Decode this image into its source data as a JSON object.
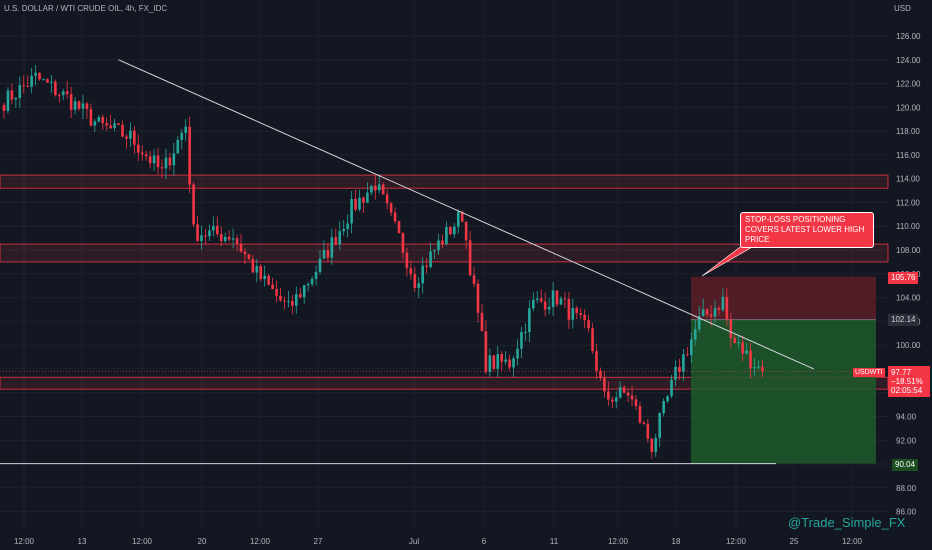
{
  "header": {
    "title": "U.S. DOLLAR / WTI CRUDE OIL, 4h, FX_IDC",
    "currency": "USD"
  },
  "annotation": {
    "text": "STOP-LOSS POSITIONING COVERS LATEST LOWER HIGH PRICE"
  },
  "watermark": "@Trade_Simple_FX",
  "price_tags": {
    "stop": "105.76",
    "entry": "102.14",
    "symbol": "USDWTI",
    "last": "97.77",
    "change": "−18.51%",
    "countdown": "02:05:54",
    "target": "90.04"
  },
  "colors": {
    "background": "#131722",
    "up": "#26a69a",
    "down": "#f23645",
    "zone_border": "#f23645",
    "stop_zone": "#5c1f28",
    "profit_zone": "#1e5a2a",
    "trendline": "#d1d4dc"
  },
  "chart_data": {
    "type": "candlestick",
    "title": "U.S. DOLLAR / WTI CRUDE OIL, 4h, FX_IDC",
    "ylim": [
      86,
      127
    ],
    "y_ticks": [
      86,
      88,
      90,
      92,
      94,
      96,
      98,
      100,
      102,
      104,
      106,
      108,
      110,
      112,
      114,
      116,
      118,
      120,
      122,
      124,
      126
    ],
    "x_ticks": [
      "12:00",
      "13",
      "12:00",
      "20",
      "12:00",
      "27",
      "Jul",
      "6",
      "11",
      "12:00",
      "18",
      "12:00",
      "25",
      "12:00"
    ],
    "anchors": [
      {
        "bar": 0,
        "price": 120.5
      },
      {
        "bar": 8,
        "price": 122.5
      },
      {
        "bar": 16,
        "price": 120.8
      },
      {
        "bar": 24,
        "price": 118.5
      },
      {
        "bar": 32,
        "price": 117.5
      },
      {
        "bar": 40,
        "price": 114.5
      },
      {
        "bar": 46,
        "price": 118.5
      },
      {
        "bar": 48,
        "price": 109.5
      },
      {
        "bar": 58,
        "price": 109.2
      },
      {
        "bar": 64,
        "price": 106.0
      },
      {
        "bar": 72,
        "price": 103.0
      },
      {
        "bar": 80,
        "price": 106.8
      },
      {
        "bar": 88,
        "price": 111.5
      },
      {
        "bar": 94,
        "price": 113.6
      },
      {
        "bar": 100,
        "price": 109.0
      },
      {
        "bar": 104,
        "price": 105.5
      },
      {
        "bar": 110,
        "price": 108.5
      },
      {
        "bar": 116,
        "price": 111.0
      },
      {
        "bar": 119,
        "price": 104.5
      },
      {
        "bar": 122,
        "price": 98.5
      },
      {
        "bar": 128,
        "price": 98.5
      },
      {
        "bar": 134,
        "price": 103.5
      },
      {
        "bar": 140,
        "price": 104.0
      },
      {
        "bar": 148,
        "price": 101.0
      },
      {
        "bar": 152,
        "price": 95.5
      },
      {
        "bar": 158,
        "price": 96.0
      },
      {
        "bar": 164,
        "price": 91.5
      },
      {
        "bar": 170,
        "price": 97.5
      },
      {
        "bar": 176,
        "price": 102.0
      },
      {
        "bar": 182,
        "price": 103.8
      },
      {
        "bar": 184,
        "price": 100.5
      },
      {
        "bar": 192,
        "price": 97.8
      }
    ],
    "zones": [
      {
        "from": 113.2,
        "to": 114.3
      },
      {
        "from": 107.0,
        "to": 108.5
      },
      {
        "from": 96.3,
        "to": 97.3
      }
    ],
    "trendline": [
      {
        "bar": 29,
        "price": 124.0
      },
      {
        "bar": 205,
        "price": 98.0
      }
    ],
    "position": {
      "stop": 105.76,
      "entry": 102.14,
      "last": 97.77,
      "target": 90.04,
      "change_pct": -18.51
    }
  }
}
